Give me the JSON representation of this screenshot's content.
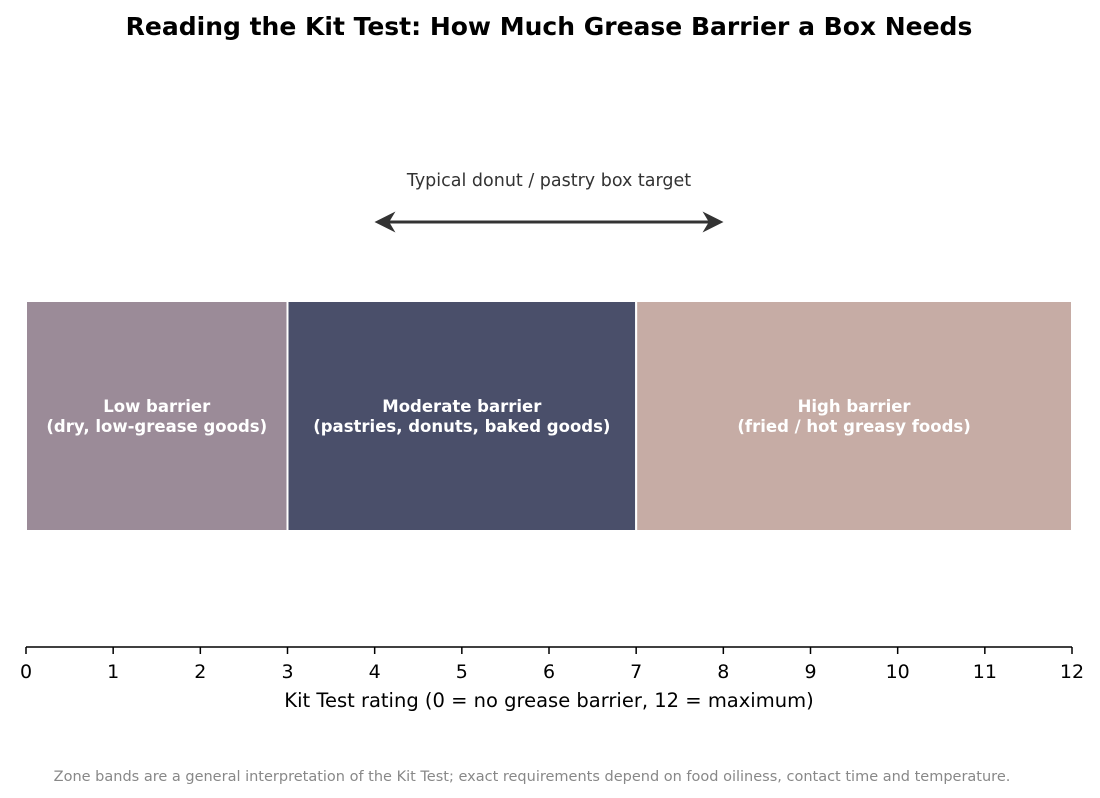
{
  "chart_data": {
    "type": "bar",
    "orientation": "horizontal-range",
    "title": "Reading the Kit Test: How Much Grease Barrier a Box Needs",
    "xlabel": "Kit Test rating (0 = no grease barrier, 12 = maximum)",
    "xlim": [
      0,
      12
    ],
    "xticks": [
      "0",
      "1",
      "2",
      "3",
      "4",
      "5",
      "6",
      "7",
      "8",
      "9",
      "10",
      "11",
      "12"
    ],
    "grid": false,
    "zones": [
      {
        "start": 0,
        "end": 3,
        "line1": "Low barrier",
        "line2": "(dry, low-grease goods)",
        "color": "#9b8b98"
      },
      {
        "start": 3,
        "end": 7,
        "line1": "Moderate barrier",
        "line2": "(pastries, donuts, baked goods)",
        "color": "#4a4f6a"
      },
      {
        "start": 7,
        "end": 12,
        "line1": "High barrier",
        "line2": "(fried / hot greasy foods)",
        "color": "#c6aca5"
      }
    ],
    "annotation": {
      "text": "Typical donut / pastry box target",
      "from": 4,
      "to": 8,
      "color": "#333333"
    },
    "footnote": "Zone bands are a general interpretation of the Kit Test; exact requirements depend on food oiliness, contact time and temperature."
  }
}
